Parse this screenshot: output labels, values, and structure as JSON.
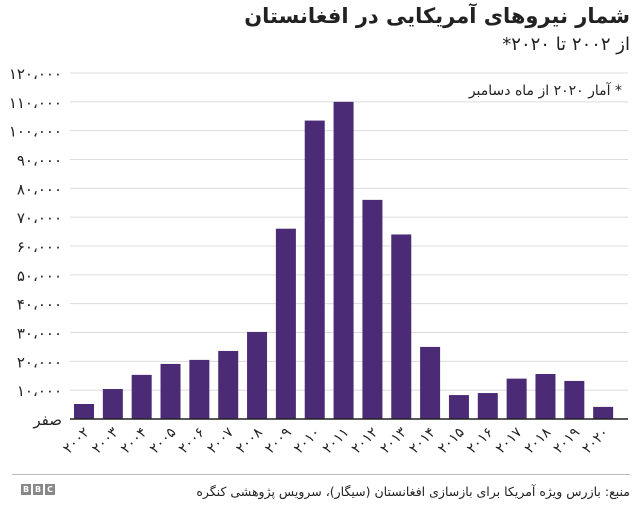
{
  "chart_data": {
    "type": "bar",
    "title": "شمار نیروهای آمریکایی در افغانستان",
    "subtitle": "از ۲۰۰۲ تا ۲۰۲۰*",
    "note": "* آمار ۲۰۲۰ از ماه دسامبر",
    "categories": [
      "۲۰۰۲",
      "۲۰۰۳",
      "۲۰۰۴",
      "۲۰۰۵",
      "۲۰۰۶",
      "۲۰۰۷",
      "۲۰۰۸",
      "۲۰۰۹",
      "۲۰۱۰",
      "۲۰۱۱",
      "۲۰۱۲",
      "۲۰۱۳",
      "۲۰۱۴",
      "۲۰۱۵",
      "۲۰۱۶",
      "۲۰۱۷",
      "۲۰۱۸",
      "۲۰۱۹",
      "۲۰۲۰"
    ],
    "values": [
      5200,
      10400,
      15300,
      19100,
      20500,
      23600,
      30200,
      66000,
      103500,
      110000,
      76000,
      64000,
      25000,
      8300,
      9000,
      14000,
      15600,
      13200,
      4200
    ],
    "ylim": [
      0,
      120000
    ],
    "yticks": [
      0,
      10000,
      20000,
      30000,
      40000,
      50000,
      60000,
      70000,
      80000,
      90000,
      100000,
      110000,
      120000
    ],
    "ytick_labels": [
      "صفر",
      "۱۰،۰۰۰",
      "۲۰،۰۰۰",
      "۳۰،۰۰۰",
      "۴۰،۰۰۰",
      "۵۰،۰۰۰",
      "۶۰،۰۰۰",
      "۷۰،۰۰۰",
      "۸۰،۰۰۰",
      "۹۰،۰۰۰",
      "۱۰۰،۰۰۰",
      "۱۱۰،۰۰۰",
      "۱۲۰،۰۰۰"
    ],
    "grid": true,
    "bar_color": "#4b2a76",
    "xlabel": "",
    "ylabel": ""
  },
  "footer": {
    "source": "منبع: بازرس ویژه آمریکا برای بازسازی افغانستان (سیگار)، سرویس پژوهشی کنگره",
    "logo": [
      "B",
      "B",
      "C"
    ]
  }
}
